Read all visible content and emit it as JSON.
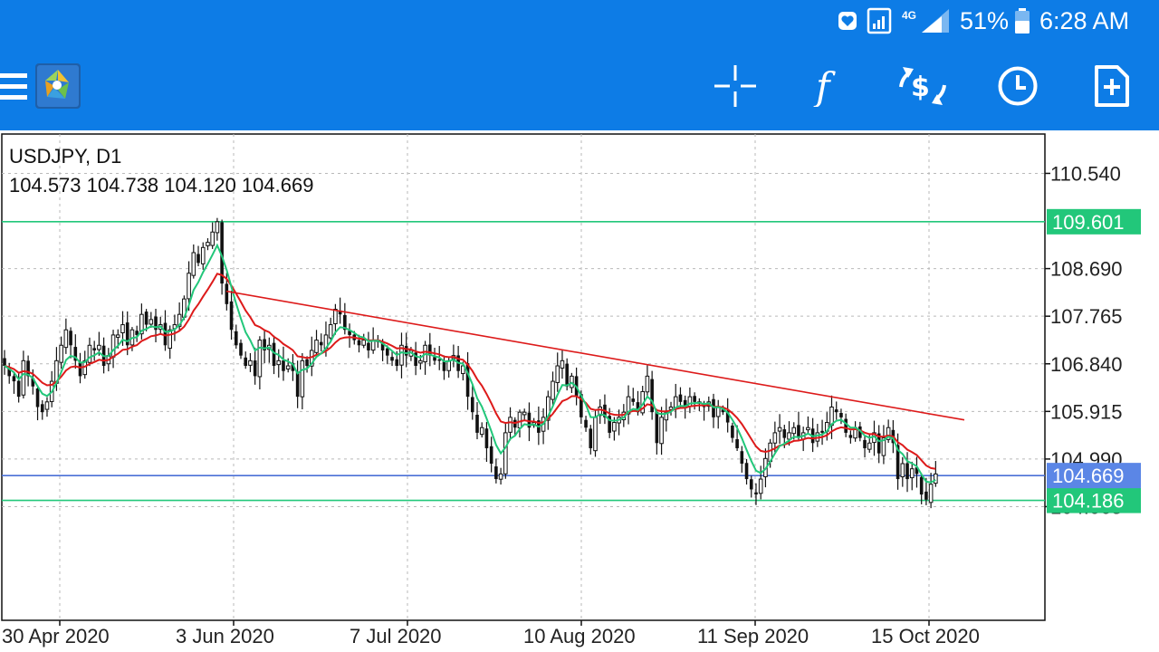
{
  "status_bar": {
    "icons": [
      "alarm-icon",
      "sim-icon",
      "signal-4g-icon",
      "battery-icon"
    ],
    "network_label": "4G",
    "battery": "51%",
    "time": "6:28 AM"
  },
  "toolbar": {
    "menu_icon": "hamburger-menu-icon",
    "app_icon": "metatrader-logo-icon",
    "buttons": [
      {
        "name": "crosshair-button",
        "icon": "crosshair-icon"
      },
      {
        "name": "indicators-button",
        "icon": "function-f-icon"
      },
      {
        "name": "trade-button",
        "icon": "dollar-exchange-icon"
      },
      {
        "name": "timeframe-button",
        "icon": "clock-icon"
      },
      {
        "name": "new-order-button",
        "icon": "add-document-icon"
      }
    ]
  },
  "chart_info": {
    "symbol": "USDJPY, D1",
    "ohlc": "104.573 104.738 104.120 104.669"
  },
  "chart_data": {
    "type": "candlestick",
    "symbol": "USDJPY",
    "timeframe": "D1",
    "y_ticks": [
      "110.540",
      "108.690",
      "107.765",
      "106.840",
      "105.915",
      "104.990",
      "104.065"
    ],
    "y_range": [
      103.0,
      110.9
    ],
    "x_ticks": [
      "30 Apr 2020",
      "3 Jun 2020",
      "7 Jul 2020",
      "10 Aug 2020",
      "11 Sep 2020",
      "15 Oct 2020"
    ],
    "current_price": "104.669",
    "horizontal_lines": [
      {
        "price": 109.601,
        "label": "109.601",
        "color": "#22c77a"
      },
      {
        "price": 104.186,
        "label": "104.186",
        "color": "#22c77a"
      },
      {
        "price": 104.669,
        "label": "104.669",
        "color": "#4a6fd6"
      }
    ],
    "trendline": {
      "start": [
        "3 Jun 2020",
        108.25
      ],
      "end": [
        "26 Oct 2020",
        105.75
      ],
      "color": "#dd1a1a"
    },
    "colors": {
      "candle": "#111111",
      "fast_ma": "#22c77a",
      "slow_ma": "#dd1a1a",
      "grid": "#b9b9b9"
    },
    "closes": [
      106.8,
      106.6,
      106.5,
      106.2,
      106.9,
      106.6,
      106.4,
      106.0,
      105.9,
      106.1,
      106.5,
      106.9,
      107.2,
      107.5,
      107.2,
      106.9,
      106.6,
      106.9,
      107.2,
      107.1,
      107.2,
      106.8,
      107.0,
      107.4,
      107.4,
      107.6,
      107.2,
      107.5,
      107.4,
      107.8,
      107.6,
      107.7,
      107.5,
      107.6,
      107.2,
      107.5,
      107.6,
      107.8,
      108.1,
      108.6,
      109.0,
      108.8,
      109.1,
      109.2,
      109.4,
      109.6,
      108.4,
      108.0,
      107.5,
      107.2,
      107.0,
      106.8,
      106.9,
      106.6,
      107.3,
      107.1,
      107.2,
      106.8,
      106.9,
      106.7,
      106.8,
      106.7,
      106.2,
      106.9,
      106.8,
      107.1,
      107.3,
      107.2,
      107.4,
      107.6,
      107.9,
      107.8,
      107.5,
      107.4,
      107.3,
      107.2,
      107.3,
      107.1,
      107.3,
      107.3,
      107.1,
      107.0,
      106.9,
      106.8,
      107.2,
      107.0,
      107.1,
      106.8,
      106.9,
      107.2,
      107.0,
      106.9,
      106.9,
      106.7,
      106.9,
      107.0,
      106.7,
      106.8,
      106.2,
      105.9,
      105.5,
      105.6,
      105.2,
      104.9,
      104.6,
      104.7,
      105.5,
      105.8,
      105.6,
      105.9,
      105.9,
      105.6,
      105.7,
      105.5,
      105.8,
      106.2,
      106.5,
      106.8,
      106.9,
      106.4,
      106.6,
      106.2,
      105.8,
      105.6,
      105.2,
      105.8,
      106.0,
      105.8,
      105.5,
      105.7,
      105.8,
      105.9,
      106.2,
      106.1,
      105.9,
      106.3,
      106.6,
      105.9,
      105.3,
      105.8,
      105.9,
      106.0,
      106.2,
      106.1,
      106.0,
      106.2,
      106.1,
      106.1,
      106.0,
      106.1,
      105.8,
      106.0,
      105.9,
      105.7,
      105.4,
      105.2,
      104.9,
      104.6,
      104.4,
      104.3,
      104.6,
      105.0,
      105.3,
      105.5,
      105.6,
      105.4,
      105.5,
      105.6,
      105.4,
      105.5,
      105.6,
      105.3,
      105.5,
      105.5,
      105.7,
      106.0,
      105.9,
      105.8,
      105.5,
      105.4,
      105.6,
      105.4,
      105.2,
      105.3,
      105.5,
      105.1,
      105.4,
      105.6,
      105.3,
      104.6,
      104.9,
      104.6,
      104.8,
      104.7,
      104.3,
      104.2,
      104.5,
      104.7
    ]
  }
}
